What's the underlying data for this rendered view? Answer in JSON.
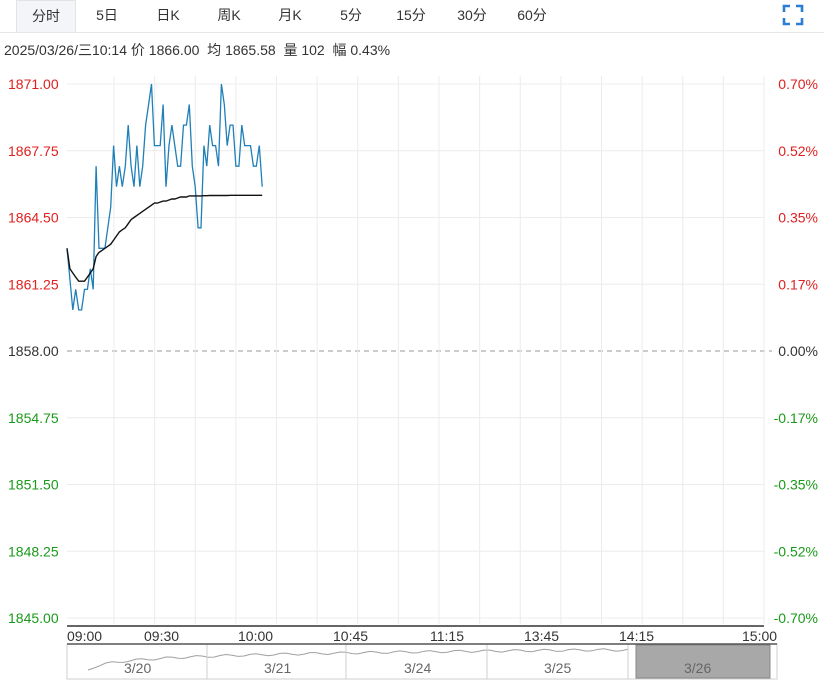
{
  "tabs": [
    {
      "label": "分时",
      "active": true
    },
    {
      "label": "5日",
      "active": false
    },
    {
      "label": "日K",
      "active": false
    },
    {
      "label": "周K",
      "active": false
    },
    {
      "label": "月K",
      "active": false
    },
    {
      "label": "5分",
      "active": false
    },
    {
      "label": "15分",
      "active": false
    },
    {
      "label": "30分",
      "active": false
    },
    {
      "label": "60分",
      "active": false
    }
  ],
  "icons": {
    "fullscreen": "fullscreen-icon"
  },
  "info": {
    "datetime": "2025/03/26/三10:14",
    "price_label": "价",
    "price": "1866.00",
    "avg_label": "均",
    "avg": "1865.58",
    "volume_label": "量",
    "volume": "102",
    "range_label": "幅",
    "range": "0.43%"
  },
  "colors": {
    "up": "#e02020",
    "down": "#1a9a1a",
    "price_line": "#1f7fb8",
    "avg_line": "#111111",
    "grid": "#ececec",
    "base": "#999999"
  },
  "navigator": {
    "labels": [
      "3/20",
      "3/21",
      "3/24",
      "3/25",
      "3/26"
    ],
    "selected": "3/26"
  },
  "chart_data": {
    "type": "line",
    "y_left_labels": [
      "1871.00",
      "1867.75",
      "1864.50",
      "1861.25",
      "1858.00",
      "1854.75",
      "1851.50",
      "1848.25",
      "1845.00"
    ],
    "y_right_labels": [
      "0.70%",
      "0.52%",
      "0.35%",
      "0.17%",
      "0.00%",
      "-0.17%",
      "-0.35%",
      "-0.52%",
      "-0.70%"
    ],
    "x_labels": [
      "09:00",
      "09:30",
      "10:00",
      "10:45",
      "11:15",
      "13:45",
      "14:15",
      "15:00"
    ],
    "ylim": [
      1845.0,
      1871.0
    ],
    "base": 1858.0,
    "series": [
      {
        "values": [
          1863.0,
          1861.5,
          1860.0,
          1861.0,
          1860.0,
          1860.0,
          1861.0,
          1861.0,
          1862.0,
          1861.0,
          1867.0,
          1863.0,
          1863.0,
          1863.0,
          1864.0,
          1865.0,
          1868.0,
          1866.0,
          1867.0,
          1866.0,
          1867.0,
          1869.0,
          1867.0,
          1866.0,
          1868.0,
          1866.0,
          1867.0,
          1869.0,
          1870.0,
          1871.0,
          1868.0,
          1868.0,
          1868.0,
          1870.0,
          1866.0,
          1868.0,
          1869.0,
          1868.0,
          1867.0,
          1867.0,
          1869.0,
          1869.0,
          1870.0,
          1867.0,
          1866.0,
          1864.0,
          1864.0,
          1868.0,
          1867.0,
          1869.0,
          1868.0,
          1868.0,
          1867.0,
          1871.0,
          1870.0,
          1868.0,
          1869.0,
          1869.0,
          1867.0,
          1867.0,
          1869.0,
          1868.0,
          1868.0,
          1868.0,
          1867.0,
          1867.0,
          1868.0,
          1866.0
        ]
      },
      {
        "values": [
          1863.0,
          1862.0,
          1861.8,
          1861.6,
          1861.4,
          1861.4,
          1861.4,
          1861.6,
          1861.8,
          1862.0,
          1862.6,
          1862.8,
          1862.9,
          1863.0,
          1863.1,
          1863.2,
          1863.4,
          1863.6,
          1863.8,
          1863.9,
          1864.0,
          1864.2,
          1864.4,
          1864.5,
          1864.6,
          1864.7,
          1864.8,
          1864.9,
          1865.0,
          1865.1,
          1865.2,
          1865.2,
          1865.25,
          1865.3,
          1865.3,
          1865.35,
          1865.4,
          1865.4,
          1865.45,
          1865.5,
          1865.5,
          1865.5,
          1865.55,
          1865.55,
          1865.55,
          1865.55,
          1865.55,
          1865.56,
          1865.56,
          1865.57,
          1865.57,
          1865.57,
          1865.57,
          1865.57,
          1865.57,
          1865.57,
          1865.58,
          1865.58,
          1865.58,
          1865.58,
          1865.58,
          1865.58,
          1865.58,
          1865.58,
          1865.58,
          1865.58,
          1865.58,
          1865.58
        ]
      }
    ],
    "minutes_total": 240,
    "x_start": "09:00"
  }
}
